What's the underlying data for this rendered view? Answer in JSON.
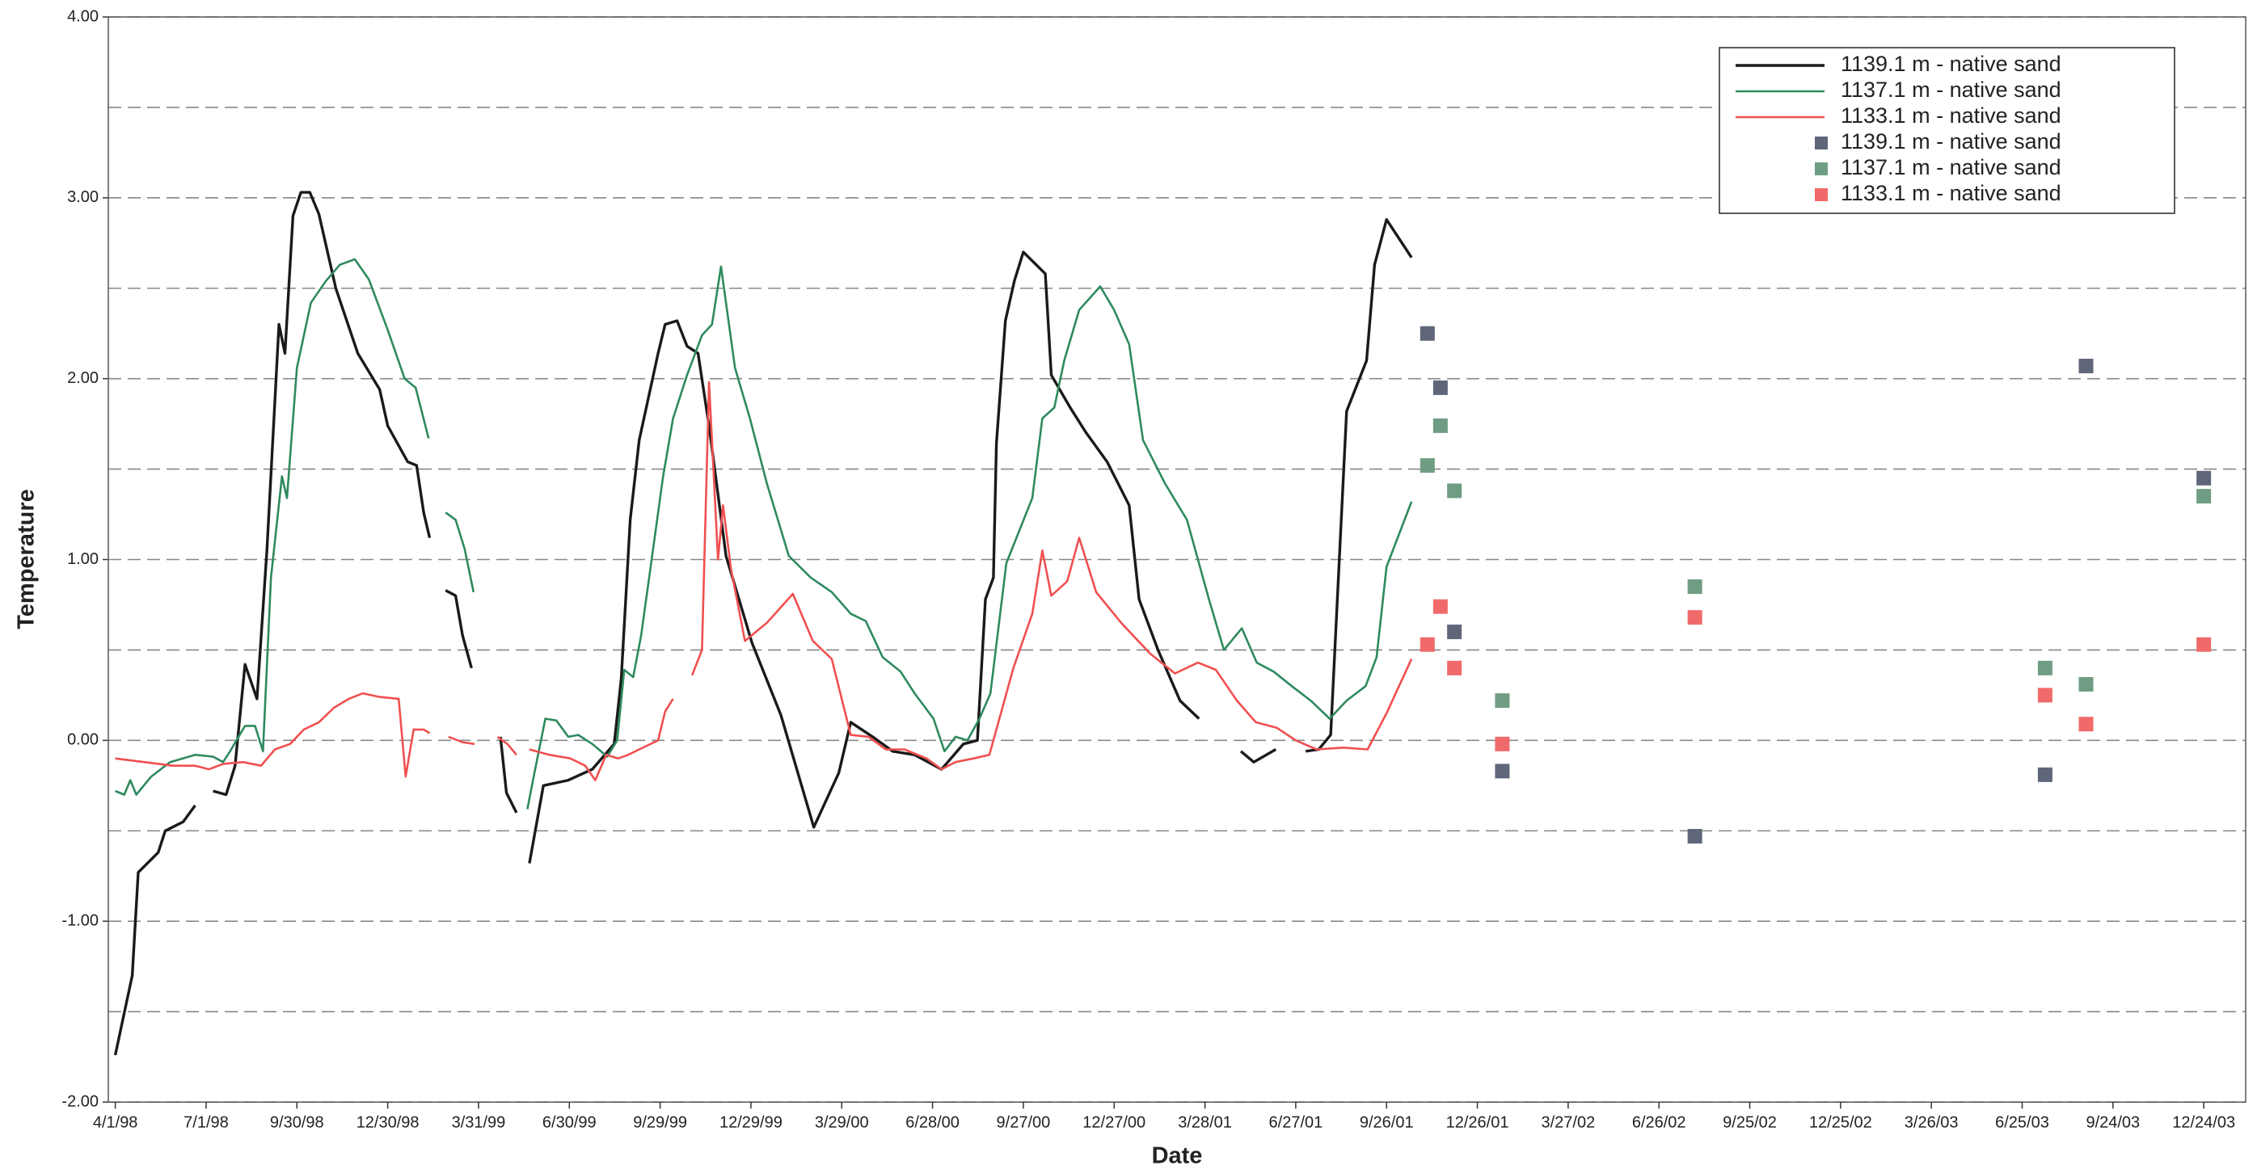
{
  "chart_data": {
    "type": "line",
    "x_label": "Date",
    "y_label": "Temperature",
    "xlim": [
      "1998-03-25",
      "2004-02-04"
    ],
    "xticks": [
      {
        "value": "1998-04-01",
        "label": "4/1/98"
      },
      {
        "value": "1998-07-01",
        "label": "7/1/98"
      },
      {
        "value": "1998-09-30",
        "label": "9/30/98"
      },
      {
        "value": "1998-12-30",
        "label": "12/30/98"
      },
      {
        "value": "1999-03-31",
        "label": "3/31/99"
      },
      {
        "value": "1999-06-30",
        "label": "6/30/99"
      },
      {
        "value": "1999-09-29",
        "label": "9/29/99"
      },
      {
        "value": "1999-12-29",
        "label": "12/29/99"
      },
      {
        "value": "2000-03-29",
        "label": "3/29/00"
      },
      {
        "value": "2000-06-28",
        "label": "6/28/00"
      },
      {
        "value": "2000-09-27",
        "label": "9/27/00"
      },
      {
        "value": "2000-12-27",
        "label": "12/27/00"
      },
      {
        "value": "2001-03-28",
        "label": "3/28/01"
      },
      {
        "value": "2001-06-27",
        "label": "6/27/01"
      },
      {
        "value": "2001-09-26",
        "label": "9/26/01"
      },
      {
        "value": "2001-12-26",
        "label": "12/26/01"
      },
      {
        "value": "2002-03-27",
        "label": "3/27/02"
      },
      {
        "value": "2002-06-26",
        "label": "6/26/02"
      },
      {
        "value": "2002-09-25",
        "label": "9/25/02"
      },
      {
        "value": "2002-12-25",
        "label": "12/25/02"
      },
      {
        "value": "2003-03-26",
        "label": "3/26/03"
      },
      {
        "value": "2003-06-25",
        "label": "6/25/03"
      },
      {
        "value": "2003-09-24",
        "label": "9/24/03"
      },
      {
        "value": "2003-12-24",
        "label": "12/24/03"
      }
    ],
    "ylim": [
      -2,
      4
    ],
    "yticks": [
      {
        "value": -2,
        "label": "-2.00"
      },
      {
        "value": -1,
        "label": "-1.00"
      },
      {
        "value": 0,
        "label": "0.00"
      },
      {
        "value": 1,
        "label": "1.00"
      },
      {
        "value": 2,
        "label": "2.00"
      },
      {
        "value": 3,
        "label": "3.00"
      },
      {
        "value": 4,
        "label": "4.00"
      }
    ],
    "ygrid": [
      -1.5,
      -0.5,
      0.5,
      1.5,
      2.5,
      3.5
    ],
    "grid": true,
    "legend": "upper right",
    "series": [
      {
        "name": "1139.1 m - native sand",
        "type": "line",
        "color": "#1a1a1a",
        "x": [
          "1998-04-01",
          "1998-04-18",
          "1998-04-24",
          "1998-05-14",
          "1998-05-21",
          "1998-06-08",
          "1998-06-20",
          null,
          "1998-07-08",
          "1998-07-21",
          "1998-07-30",
          "1998-08-09",
          "1998-08-21",
          "1998-08-31",
          "1998-09-12",
          "1998-09-18",
          "1998-09-26",
          "1998-10-04",
          "1998-10-13",
          "1998-10-22",
          "1998-11-08",
          "1998-11-30",
          "1998-12-22",
          "1998-12-30",
          "1999-01-19",
          "1999-01-28",
          "1999-02-04",
          "1999-02-10",
          null,
          "1999-02-26",
          "1999-03-08",
          "1999-03-15",
          "1999-03-24",
          null,
          "1999-04-22",
          "1999-04-28",
          "1999-05-08",
          null,
          "1999-05-21",
          "1999-06-04",
          "1999-06-29",
          "1999-07-23",
          "1999-08-14",
          "1999-08-21",
          "1999-08-30",
          "1999-09-08",
          "1999-09-27",
          "1999-10-04",
          "1999-10-16",
          "1999-10-26",
          "1999-11-06",
          "1999-11-17",
          "1999-12-04",
          "1999-12-30",
          "2000-01-28",
          "2000-03-01",
          "2000-03-26",
          "2000-04-07",
          "2000-04-29",
          "2000-05-19",
          "2000-06-10",
          "2000-07-07",
          "2000-07-29",
          "2000-08-12",
          "2000-08-20",
          "2000-08-28",
          "2000-08-31",
          "2000-09-09",
          "2000-09-18",
          "2000-09-27",
          "2000-10-19",
          "2000-10-25",
          "2000-11-13",
          "2000-11-29",
          "2000-12-20",
          "2001-01-11",
          "2001-01-21",
          "2001-02-09",
          "2001-03-03",
          "2001-03-22",
          null,
          "2001-05-03",
          "2001-05-16",
          "2001-06-07",
          null,
          "2001-07-07",
          "2001-07-20",
          "2001-08-01",
          "2001-08-17",
          "2001-09-06",
          "2001-09-14",
          "2001-09-26",
          "2001-10-21"
        ],
        "values": [
          -1.74,
          -1.3,
          -0.73,
          -0.62,
          -0.5,
          -0.45,
          -0.36,
          null,
          -0.28,
          -0.3,
          -0.14,
          0.42,
          0.23,
          1.06,
          2.3,
          2.14,
          2.9,
          3.03,
          3.03,
          2.91,
          2.5,
          2.14,
          1.94,
          1.74,
          1.54,
          1.52,
          1.26,
          1.12,
          null,
          0.83,
          0.8,
          0.58,
          0.4,
          null,
          0.02,
          -0.29,
          -0.4,
          null,
          -0.68,
          -0.25,
          -0.22,
          -0.16,
          -0.02,
          0.34,
          1.22,
          1.66,
          2.14,
          2.3,
          2.32,
          2.18,
          2.14,
          1.74,
          1.02,
          0.54,
          0.14,
          -0.48,
          -0.18,
          0.1,
          0.02,
          -0.06,
          -0.08,
          -0.16,
          -0.02,
          0,
          0.78,
          0.9,
          1.64,
          2.32,
          2.54,
          2.7,
          2.58,
          2.02,
          1.84,
          1.7,
          1.54,
          1.3,
          0.78,
          0.5,
          0.22,
          0.12,
          null,
          -0.06,
          -0.12,
          -0.05,
          null,
          -0.06,
          -0.05,
          0.03,
          1.82,
          2.1,
          2.63,
          2.88,
          2.67
        ]
      },
      {
        "name": "1137.1 m - native sand",
        "type": "line",
        "color": "#2e8a5e",
        "x": [
          "1998-04-01",
          "1998-04-10",
          "1998-04-16",
          "1998-04-22",
          "1998-05-07",
          "1998-05-26",
          "1998-06-20",
          "1998-07-08",
          "1998-07-18",
          "1998-07-25",
          "1998-08-09",
          "1998-08-19",
          "1998-08-27",
          "1998-09-04",
          "1998-09-15",
          "1998-09-20",
          "1998-09-30",
          "1998-10-14",
          "1998-10-29",
          "1998-11-12",
          "1998-11-27",
          "1998-12-11",
          "1998-12-30",
          "1999-01-16",
          "1999-01-27",
          "1999-02-09",
          null,
          "1999-02-26",
          "1999-03-08",
          "1999-03-17",
          "1999-03-26",
          null,
          "1999-05-19",
          "1999-05-26",
          "1999-06-06",
          "1999-06-17",
          "1999-06-29",
          "1999-07-09",
          "1999-07-23",
          "1999-08-07",
          "1999-08-17",
          "1999-08-24",
          "1999-09-02",
          "1999-09-10",
          "1999-09-20",
          "1999-10-02",
          "1999-10-12",
          "1999-10-26",
          "1999-11-10",
          "1999-11-20",
          "1999-11-29",
          "1999-12-13",
          "1999-12-28",
          "2000-01-14",
          "2000-02-05",
          "2000-02-27",
          "2000-03-19",
          "2000-04-07",
          "2000-04-22",
          "2000-05-09",
          "2000-05-27",
          "2000-06-10",
          "2000-06-29",
          "2000-07-10",
          "2000-07-21",
          "2000-08-02",
          "2000-08-14",
          "2000-08-25",
          "2000-09-10",
          "2000-10-06",
          "2000-10-16",
          "2000-10-28",
          "2000-11-07",
          "2000-11-22",
          "2000-12-13",
          "2000-12-27",
          "2001-01-11",
          "2001-01-25",
          "2001-02-16",
          "2001-03-10",
          "2001-04-01",
          "2001-04-16",
          "2001-05-04",
          "2001-05-19",
          "2001-06-05",
          "2001-06-23",
          "2001-07-12",
          "2001-07-31",
          "2001-08-17",
          "2001-09-05",
          "2001-09-16",
          "2001-09-26",
          "2001-10-21"
        ],
        "values": [
          -0.28,
          -0.3,
          -0.22,
          -0.3,
          -0.2,
          -0.12,
          -0.08,
          -0.09,
          -0.12,
          -0.06,
          0.08,
          0.08,
          -0.06,
          0.9,
          1.46,
          1.34,
          2.06,
          2.42,
          2.54,
          2.63,
          2.66,
          2.55,
          2.27,
          2.0,
          1.95,
          1.67,
          null,
          1.26,
          1.22,
          1.06,
          0.82,
          null,
          -0.38,
          -0.18,
          0.12,
          0.11,
          0.02,
          0.03,
          -0.02,
          -0.09,
          0,
          0.39,
          0.35,
          0.58,
          0.98,
          1.46,
          1.78,
          2.02,
          2.24,
          2.3,
          2.62,
          2.06,
          1.78,
          1.42,
          1.02,
          0.9,
          0.82,
          0.7,
          0.66,
          0.46,
          0.38,
          0.26,
          0.12,
          -0.06,
          0.02,
          0,
          0.12,
          0.26,
          0.98,
          1.34,
          1.78,
          1.84,
          2.1,
          2.38,
          2.51,
          2.38,
          2.19,
          1.66,
          1.42,
          1.22,
          0.78,
          0.5,
          0.62,
          0.43,
          0.38,
          0.3,
          0.22,
          0.12,
          0.22,
          0.3,
          0.46,
          0.96,
          1.32
        ]
      },
      {
        "name": "1133.1 m - native sand",
        "type": "line",
        "color": "#f05050",
        "x": [
          "1998-04-01",
          "1998-04-30",
          "1998-05-29",
          "1998-06-20",
          "1998-07-04",
          "1998-07-18",
          "1998-08-07",
          "1998-08-25",
          "1998-09-08",
          "1998-09-23",
          "1998-10-07",
          "1998-10-22",
          "1998-11-06",
          "1998-11-21",
          "1998-12-05",
          "1998-12-22",
          "1999-01-10",
          "1999-01-17",
          "1999-01-25",
          "1999-02-04",
          "1999-02-10",
          null,
          "1999-03-01",
          "1999-03-15",
          "1999-03-27",
          null,
          "1999-04-19",
          "1999-04-29",
          "1999-05-08",
          null,
          "1999-05-21",
          "1999-06-10",
          "1999-07-01",
          "1999-07-16",
          "1999-07-26",
          "1999-08-06",
          "1999-08-18",
          "1999-08-28",
          "1999-09-08",
          "1999-09-27",
          "1999-10-04",
          "1999-10-12",
          null,
          "1999-10-31",
          "1999-11-10",
          "1999-11-17",
          "1999-11-26",
          "1999-12-01",
          "1999-12-09",
          "1999-12-23",
          "2000-01-14",
          "2000-02-09",
          "2000-02-29",
          "2000-03-19",
          "2000-04-07",
          "2000-04-25",
          "2000-05-12",
          "2000-05-31",
          "2000-06-22",
          "2000-07-07",
          "2000-07-21",
          "2000-08-08",
          "2000-08-24",
          "2000-09-17",
          "2000-10-06",
          "2000-10-16",
          "2000-10-25",
          "2000-11-10",
          "2000-11-22",
          "2000-12-09",
          "2001-01-03",
          "2001-02-01",
          "2001-02-26",
          "2001-03-21",
          "2001-04-08",
          "2001-04-29",
          "2001-05-18",
          "2001-06-08",
          "2001-06-27",
          "2001-07-18",
          "2001-08-14",
          "2001-09-07",
          "2001-09-26",
          "2001-10-21"
        ],
        "values": [
          -0.1,
          -0.12,
          -0.14,
          -0.14,
          -0.16,
          -0.13,
          -0.12,
          -0.14,
          -0.05,
          -0.02,
          0.06,
          0.1,
          0.18,
          0.23,
          0.26,
          0.24,
          0.23,
          -0.2,
          0.06,
          0.06,
          0.04,
          null,
          0.02,
          -0.01,
          -0.02,
          null,
          0.02,
          -0.02,
          -0.08,
          null,
          -0.05,
          -0.08,
          -0.1,
          -0.14,
          -0.22,
          -0.08,
          -0.1,
          -0.08,
          -0.05,
          0,
          0.16,
          0.23,
          null,
          0.36,
          0.5,
          1.98,
          1.0,
          1.3,
          0.95,
          0.55,
          0.65,
          0.81,
          0.55,
          0.45,
          0.03,
          0.02,
          -0.05,
          -0.05,
          -0.1,
          -0.16,
          -0.12,
          -0.1,
          -0.08,
          0.4,
          0.7,
          1.05,
          0.8,
          0.88,
          1.12,
          0.82,
          0.65,
          0.48,
          0.37,
          0.43,
          0.39,
          0.22,
          0.1,
          0.07,
          0,
          -0.05,
          -0.04,
          -0.05,
          0.15,
          0.45
        ]
      },
      {
        "name": "1139.1 m - native sand",
        "type": "scatter",
        "color": "#60667a",
        "x": [
          "2001-11-06",
          "2001-11-19",
          "2001-12-03",
          "2002-01-20",
          "2002-08-01",
          "2003-07-18",
          "2003-08-28",
          "2003-12-24"
        ],
        "values": [
          2.25,
          1.95,
          0.6,
          -0.17,
          -0.53,
          -0.19,
          2.07,
          1.45
        ]
      },
      {
        "name": "1137.1 m - native sand",
        "type": "scatter",
        "color": "#6f9d84",
        "x": [
          "2001-11-06",
          "2001-11-19",
          "2001-12-03",
          "2002-01-20",
          "2002-08-01",
          "2003-07-18",
          "2003-08-28",
          "2003-12-24"
        ],
        "values": [
          1.52,
          1.74,
          1.38,
          0.22,
          0.85,
          0.4,
          0.31,
          1.35
        ]
      },
      {
        "name": "1133.1 m - native sand",
        "type": "scatter",
        "color": "#f06a6a",
        "x": [
          "2001-11-06",
          "2001-11-19",
          "2001-12-03",
          "2002-01-20",
          "2002-08-01",
          "2003-07-18",
          "2003-08-28",
          "2003-12-24"
        ],
        "values": [
          0.53,
          0.74,
          0.4,
          -0.02,
          0.68,
          0.25,
          0.09,
          0.53
        ]
      }
    ]
  }
}
